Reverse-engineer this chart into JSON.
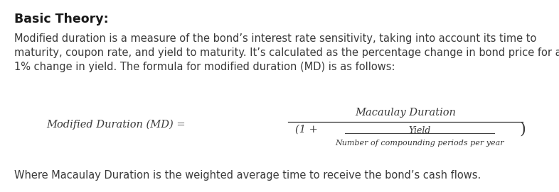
{
  "title": "Basic Theory:",
  "body_text_line1": "Modified duration is a measure of the bond’s interest rate sensitivity, taking into account its time to",
  "body_text_line2": "maturity, coupon rate, and yield to maturity. It’s calculated as the percentage change in bond price for a",
  "body_text_line3": "1% change in yield. The formula for modified duration (MD) is as follows:",
  "formula_lhs": "Modified Duration (MD) =",
  "formula_numerator": "Macaulay Duration",
  "formula_denom_main": "Yield",
  "formula_denom_sub": "Number of compounding periods per year",
  "formula_denom_prefix": "(1 +",
  "formula_denom_suffix": ")",
  "footer_text": "Where Macaulay Duration is the weighted average time to receive the bond’s cash flows.",
  "bg_color": "#ffffff",
  "text_color": "#3a3a3a",
  "title_color": "#1a1a1a",
  "title_fontsize": 12.5,
  "body_fontsize": 10.5,
  "formula_fontsize": 10.5,
  "footer_fontsize": 10.5,
  "fig_width": 7.86,
  "fig_height": 2.71,
  "dpi": 100
}
